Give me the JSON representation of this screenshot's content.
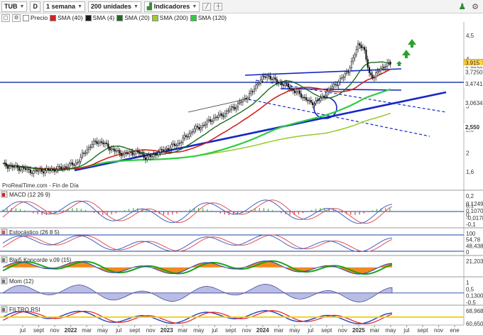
{
  "toolbar": {
    "symbol": "TUB",
    "d_label": "D",
    "period": "1 semana",
    "units": "200 unidades",
    "indicators": "Indicadores"
  },
  "legend": {
    "price": "Precio",
    "sma40": "SMA (40)",
    "sma4": "SMA (4)",
    "sma20": "SMA (20)",
    "sma200": "SMA (200)",
    "sma120": "SMA (120)"
  },
  "colors": {
    "sma40": "#d42020",
    "sma4": "#1a1a1a",
    "sma20": "#1e6a1e",
    "sma200": "#9acd32",
    "sma120": "#2ecc40",
    "trend": "#1427c8",
    "hline": "#1e3fa8"
  },
  "attribution": "ProRealTime.com - Fin de Día",
  "x_labels": [
    "jul",
    "sept",
    "nov",
    "2022",
    "mar",
    "may",
    "jul",
    "sept",
    "nov",
    "2023",
    "mar",
    "may",
    "jul",
    "sept",
    "nov",
    "2024",
    "mar",
    "may",
    "jul",
    "sept",
    "nov",
    "2025",
    "mar",
    "may",
    "jul",
    "sept",
    "nov",
    "ene"
  ],
  "price_axis": {
    "ticks": [
      "4,5",
      "4",
      "3,5",
      "3",
      "2,5",
      "2",
      "1,6"
    ],
    "tags": [
      {
        "label": "3,915",
        "bg": "#ffd34d",
        "fg": "#000"
      },
      {
        "label": "3,7938",
        "bg": "#ffffff",
        "fg": "#333"
      },
      {
        "label": "3,7250",
        "bg": "#ffffff",
        "fg": "#333"
      },
      {
        "label": "3,4741",
        "bg": "#ffffff",
        "fg": "#2a8a2a"
      },
      {
        "label": "3,0634",
        "bg": "#ffffff",
        "fg": "#2a8a2a"
      },
      {
        "label": "2,550",
        "bg": "#ffffff",
        "fg": "#1e8e1e"
      }
    ]
  },
  "panels": {
    "macd": {
      "title": "MACD (12 26 9)",
      "ticks": [
        "0,2",
        "0,1",
        "0",
        "-0,1"
      ],
      "tags": [
        "0,1249",
        "0,1070",
        "-0,0178"
      ]
    },
    "stoch": {
      "title": "Estocástico (26 8 5)",
      "ticks": [
        "100",
        "54,78",
        "48,438",
        "0"
      ]
    },
    "koncorde": {
      "title": "Blai5 Koncorde v.09 (15)",
      "ticks": [
        "21,203"
      ]
    },
    "mom": {
      "title": "Mom (12)",
      "ticks": [
        "1",
        "0,5",
        "0,1300",
        "-0,5"
      ]
    },
    "rsi": {
      "title": "FILTRO RSI",
      "ticks": [
        "68,968",
        "60,650"
      ]
    }
  },
  "chart_data": {
    "type": "line",
    "x_range": [
      "2021-06",
      "2026-01"
    ],
    "ylim": [
      1.45,
      4.65
    ],
    "weekly_close": [
      1.75,
      1.72,
      1.7,
      1.68,
      1.66,
      1.62,
      1.6,
      1.63,
      1.62,
      1.64,
      1.66,
      1.68,
      1.72,
      1.75,
      1.8,
      1.95,
      2.1,
      2.2,
      2.25,
      2.2,
      2.12,
      2.05,
      2.0,
      1.98,
      2.0,
      2.02,
      1.98,
      1.9,
      1.92,
      2.0,
      2.05,
      2.1,
      2.15,
      2.2,
      2.3,
      2.4,
      2.5,
      2.55,
      2.6,
      2.7,
      2.75,
      2.8,
      2.85,
      2.95,
      3.0,
      3.1,
      3.2,
      3.3,
      3.5,
      3.6,
      3.65,
      3.55,
      3.5,
      3.45,
      3.4,
      3.3,
      3.25,
      3.15,
      3.05,
      3.1,
      3.15,
      3.3,
      3.4,
      3.5,
      3.6,
      3.75,
      4.0,
      4.35,
      4.2,
      3.7,
      3.6,
      3.8,
      3.85,
      3.915
    ]
  }
}
